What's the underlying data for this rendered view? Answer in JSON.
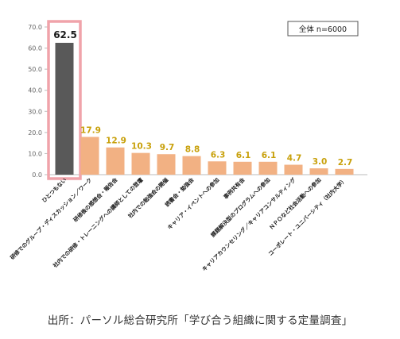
{
  "source_text": "出所：パーソル総合研究所「学び合う組織に関する定量調査」",
  "chart_data": {
    "type": "bar",
    "title": "",
    "xlabel": "",
    "ylabel": "",
    "sample_label": "全体 n=6000",
    "ylim": [
      0,
      70
    ],
    "yticks": [
      "0.0",
      "10.0",
      "20.0",
      "30.0",
      "40.0",
      "50.0",
      "60.0",
      "70.0"
    ],
    "grid": false,
    "highlight_index": 0,
    "colors": {
      "bar": "#f2b183",
      "highlight_bar": "#595959",
      "highlight_frame": "#f0a3aa",
      "value_label": "#c8a00a",
      "highlight_value_label": "#1a1a1a",
      "axis": "#bbbbbb"
    },
    "categories": [
      "ひとつもない",
      "研修でのグループ・ディスカッション／ワーク",
      "研修後の感想会・報告会",
      "社内での研修・トレーニングへの講師としての登壇",
      "社内での勉強会の開催",
      "読書会・勉強会",
      "キャリア・イベントへの参加",
      "事例共有会",
      "課題解決型のプログラムへの参加",
      "キャリアカウンセリング／キャリアコンサルティング",
      "ＮＰＯなど社会活動への参加",
      "コーポレート・ユニバーシティ（社内大学）"
    ],
    "values": [
      62.5,
      17.9,
      12.9,
      10.3,
      9.7,
      8.8,
      6.3,
      6.1,
      6.1,
      4.7,
      3.0,
      2.7
    ],
    "value_labels": [
      "62.5",
      "17.9",
      "12.9",
      "10.3",
      "9.7",
      "8.8",
      "6.3",
      "6.1",
      "6.1",
      "4.7",
      "3.0",
      "2.7"
    ]
  }
}
